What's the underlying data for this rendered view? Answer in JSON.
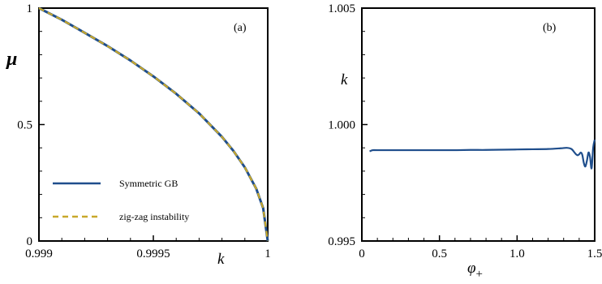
{
  "chart_data": [
    {
      "type": "line",
      "panel_tag": "(a)",
      "xlabel": "k",
      "ylabel": "μ",
      "xlim": [
        0.999,
        1.0
      ],
      "ylim": [
        0,
        1
      ],
      "x_ticks": [
        "0.999",
        "0.9995",
        "1"
      ],
      "y_ticks": [
        "0",
        "0.5",
        "1"
      ],
      "legend_position": "bottom-left",
      "colors": {
        "symmetric": "#1f4e8c",
        "zigzag": "#c8a82a"
      },
      "series": [
        {
          "name": "Symmetric GB",
          "style": "solid",
          "x": [
            0.999,
            0.9991,
            0.9992,
            0.9993,
            0.9994,
            0.9995,
            0.9996,
            0.9997,
            0.9998,
            0.99985,
            0.9999,
            0.99995,
            0.99998,
            1.0
          ],
          "y": [
            1.0,
            0.95,
            0.894,
            0.837,
            0.775,
            0.707,
            0.632,
            0.548,
            0.447,
            0.387,
            0.316,
            0.224,
            0.141,
            0.0
          ]
        },
        {
          "name": "zig-zag instability",
          "style": "dashed",
          "x": [
            0.999,
            0.9991,
            0.9992,
            0.9993,
            0.9994,
            0.9995,
            0.9996,
            0.9997,
            0.9998,
            0.99985,
            0.9999,
            0.99995,
            0.99998,
            1.0
          ],
          "y": [
            1.0,
            0.95,
            0.894,
            0.837,
            0.775,
            0.707,
            0.632,
            0.548,
            0.447,
            0.387,
            0.316,
            0.224,
            0.141,
            0.0
          ]
        }
      ]
    },
    {
      "type": "line",
      "panel_tag": "(b)",
      "xlabel": "φ",
      "xlabel_subscript": "+",
      "ylabel": "k",
      "xlim": [
        0,
        1.5
      ],
      "ylim": [
        0.995,
        1.005
      ],
      "x_ticks": [
        "0",
        "0.5",
        "1.0",
        "1.5"
      ],
      "y_ticks": [
        "0.995",
        "1.000",
        "1.005"
      ],
      "colors": {
        "line": "#1f4e8c"
      },
      "series": [
        {
          "x": [
            0.05,
            0.07,
            0.1,
            0.2,
            0.3,
            0.4,
            0.5,
            0.6,
            0.7,
            0.8,
            0.9,
            1.0,
            1.1,
            1.2,
            1.28,
            1.32,
            1.35,
            1.37,
            1.38,
            1.39,
            1.4,
            1.41,
            1.42,
            1.43,
            1.44,
            1.45,
            1.46,
            1.47,
            1.48,
            1.49,
            1.5
          ],
          "y": [
            0.99885,
            0.9989,
            0.9989,
            0.9989,
            0.9989,
            0.9989,
            0.9989,
            0.9989,
            0.99891,
            0.99891,
            0.99892,
            0.99893,
            0.99894,
            0.99895,
            0.99898,
            0.999,
            0.99895,
            0.9988,
            0.99872,
            0.99868,
            0.99872,
            0.9988,
            0.9987,
            0.99835,
            0.9982,
            0.99845,
            0.9988,
            0.9986,
            0.99812,
            0.999,
            0.99935
          ]
        }
      ]
    }
  ]
}
